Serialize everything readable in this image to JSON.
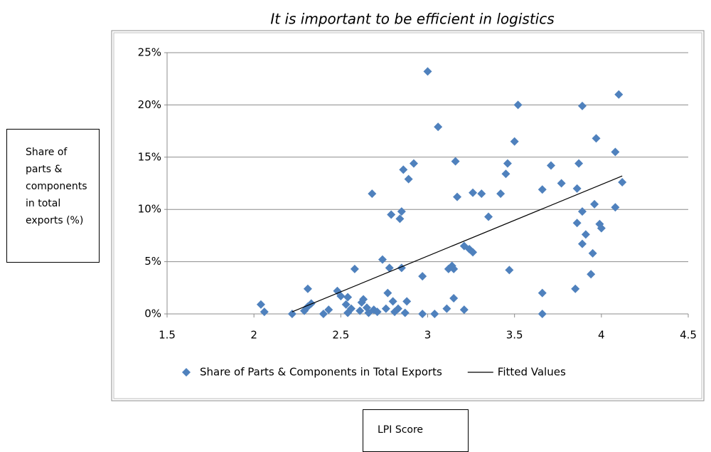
{
  "chart_data": {
    "type": "scatter",
    "title": "It is important to be efficient in logistics",
    "y_label": "Share of parts & components in total exports (%)",
    "x_label": "LPI Score",
    "xlim": [
      1.5,
      4.5
    ],
    "xticks": [
      1.5,
      2,
      2.5,
      3,
      3.5,
      4,
      4.5
    ],
    "ylim": [
      0,
      25
    ],
    "yticks": [
      {
        "value": 0,
        "label": "0%"
      },
      {
        "value": 5,
        "label": "5%"
      },
      {
        "value": 10,
        "label": "10%"
      },
      {
        "value": 15,
        "label": "15%"
      },
      {
        "value": 20,
        "label": "20%"
      },
      {
        "value": 25,
        "label": "25%"
      }
    ],
    "grid": true,
    "legend": "bottom",
    "series": [
      {
        "name": "Share of Parts & Components in Total Exports",
        "color": "#4f81bd",
        "mode": "markers",
        "x": [
          2.04,
          2.06,
          2.22,
          2.29,
          2.31,
          2.31,
          2.33,
          2.4,
          2.43,
          2.48,
          2.5,
          2.53,
          2.54,
          2.54,
          2.56,
          2.58,
          2.61,
          2.62,
          2.63,
          2.65,
          2.66,
          2.68,
          2.69,
          2.71,
          2.74,
          2.76,
          2.77,
          2.78,
          2.79,
          2.8,
          2.81,
          2.83,
          2.84,
          2.85,
          2.85,
          2.86,
          2.87,
          2.88,
          2.89,
          2.92,
          2.97,
          2.97,
          3.0,
          3.04,
          3.06,
          3.11,
          3.12,
          3.14,
          3.15,
          3.15,
          3.16,
          3.17,
          3.21,
          3.21,
          3.24,
          3.26,
          3.26,
          3.31,
          3.35,
          3.42,
          3.45,
          3.46,
          3.47,
          3.5,
          3.52,
          3.66,
          3.66,
          3.66,
          3.71,
          3.77,
          3.85,
          3.86,
          3.86,
          3.87,
          3.89,
          3.89,
          3.89,
          3.91,
          3.94,
          3.95,
          3.96,
          3.97,
          3.99,
          4.0,
          4.08,
          4.08,
          4.1,
          4.12
        ],
        "values": [
          0.9,
          0.2,
          0,
          0.3,
          0.7,
          2.4,
          1.0,
          0,
          0.4,
          2.2,
          1.7,
          0.9,
          1.6,
          0.1,
          0.5,
          4.3,
          0.3,
          1.1,
          1.4,
          0.6,
          0.1,
          11.5,
          0.4,
          0.2,
          5.2,
          0.5,
          2.0,
          4.4,
          9.5,
          1.2,
          0.2,
          0.5,
          9.1,
          9.8,
          4.4,
          13.8,
          0.1,
          1.2,
          12.9,
          14.4,
          3.6,
          0,
          23.2,
          0,
          17.9,
          0.5,
          4.3,
          4.6,
          4.3,
          1.5,
          14.6,
          11.2,
          0.4,
          6.5,
          6.2,
          11.6,
          5.9,
          11.5,
          9.3,
          11.5,
          13.4,
          14.4,
          4.2,
          16.5,
          20.0,
          0,
          11.9,
          2.0,
          14.2,
          12.5,
          2.4,
          12.0,
          8.7,
          14.4,
          19.9,
          6.7,
          9.8,
          7.6,
          3.8,
          5.8,
          10.5,
          16.8,
          8.6,
          8.2,
          15.5,
          10.2,
          21.0,
          12.6
        ]
      },
      {
        "name": "Fitted Values",
        "color": "#000000",
        "mode": "line",
        "x": [
          2.22,
          4.12
        ],
        "values": [
          0.2,
          13.2
        ]
      }
    ]
  }
}
